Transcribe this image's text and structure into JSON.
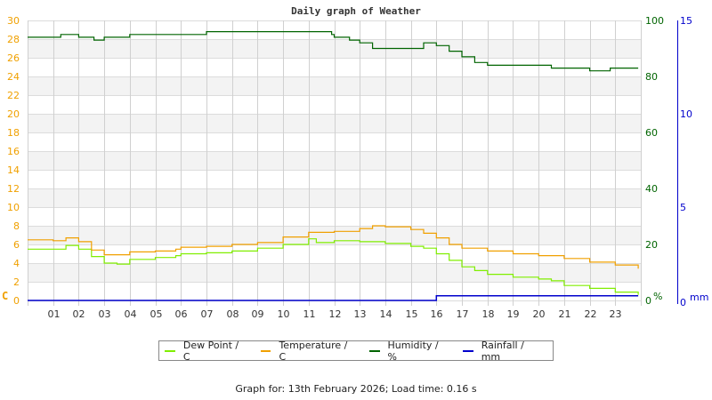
{
  "chart_data": {
    "type": "line",
    "title": "Daily graph of Weather",
    "xlabel": "",
    "x_ticks": [
      "01",
      "02",
      "03",
      "04",
      "05",
      "06",
      "07",
      "08",
      "09",
      "10",
      "11",
      "12",
      "13",
      "14",
      "15",
      "16",
      "17",
      "18",
      "19",
      "20",
      "21",
      "22",
      "23"
    ],
    "xlim": [
      0,
      24
    ],
    "axes": {
      "left": {
        "label": "C",
        "ticks": [
          0,
          2,
          4,
          6,
          8,
          10,
          12,
          14,
          16,
          18,
          20,
          22,
          24,
          26,
          28,
          30
        ],
        "range": [
          0,
          30
        ],
        "color": "#f0a000"
      },
      "right1": {
        "label": "%",
        "ticks": [
          0,
          20,
          40,
          60,
          80,
          100
        ],
        "range": [
          0,
          100
        ],
        "color": "#006400"
      },
      "right2": {
        "label": "mm",
        "ticks": [
          0,
          5,
          10,
          15
        ],
        "range": [
          0,
          15
        ],
        "color": "#0000cc"
      }
    },
    "grid": true,
    "legend_position": "bottom",
    "series": [
      {
        "name": "Dew Point / C",
        "color": "#80ee00",
        "axis": "left",
        "x": [
          0,
          1,
          1.5,
          2,
          2.5,
          3,
          3.5,
          4,
          5,
          5.8,
          6,
          7,
          8,
          9,
          10,
          11,
          11.3,
          12,
          13,
          14,
          15,
          15.5,
          16,
          16.5,
          17,
          17.5,
          18,
          19,
          20,
          20.5,
          21,
          22,
          22.3,
          23,
          23.9
        ],
        "values": [
          5.5,
          5.5,
          5.9,
          5.5,
          4.7,
          4.0,
          3.9,
          4.4,
          4.6,
          4.8,
          5.0,
          5.1,
          5.3,
          5.6,
          6.0,
          6.6,
          6.2,
          6.4,
          6.3,
          6.1,
          5.8,
          5.6,
          5.0,
          4.3,
          3.6,
          3.2,
          2.8,
          2.5,
          2.3,
          2.1,
          1.6,
          1.3,
          1.3,
          0.9,
          0.6
        ]
      },
      {
        "name": "Temperature / C",
        "color": "#f0a000",
        "axis": "left",
        "x": [
          0,
          1,
          1.5,
          2,
          2.5,
          3,
          3.5,
          4,
          5,
          5.8,
          6,
          7,
          8,
          9,
          10,
          11,
          12,
          13,
          13.5,
          14,
          15,
          15.5,
          16,
          16.5,
          17,
          18,
          19,
          20,
          21,
          22,
          23,
          23.9
        ],
        "values": [
          6.5,
          6.4,
          6.7,
          6.3,
          5.4,
          4.9,
          4.9,
          5.2,
          5.3,
          5.5,
          5.7,
          5.8,
          6.0,
          6.2,
          6.8,
          7.3,
          7.4,
          7.7,
          8.0,
          7.9,
          7.6,
          7.2,
          6.7,
          6.0,
          5.6,
          5.3,
          5.0,
          4.8,
          4.5,
          4.1,
          3.8,
          3.4
        ]
      },
      {
        "name": "Humidity / %",
        "color": "#006400",
        "axis": "right1",
        "x": [
          0,
          1.3,
          2,
          2.6,
          3,
          4,
          6.9,
          7,
          11,
          11.9,
          12,
          12.6,
          13,
          13.5,
          15,
          15.5,
          16,
          16.5,
          17,
          17.5,
          18,
          19,
          20,
          20.5,
          21,
          22,
          22.8,
          23.9
        ],
        "values": [
          94,
          95,
          94,
          93,
          94,
          95,
          95,
          96,
          96,
          95,
          94,
          93,
          92,
          90,
          90,
          92,
          91,
          89,
          87,
          85,
          84,
          84,
          84,
          83,
          83,
          82,
          83,
          83
        ]
      },
      {
        "name": "Rainfall / mm",
        "color": "#0000cc",
        "axis": "right2",
        "x": [
          0,
          15.95,
          16,
          23.9
        ],
        "values": [
          0,
          0,
          0.25,
          0.25
        ]
      }
    ]
  },
  "legend": {
    "items": [
      {
        "label": "Dew Point / C",
        "color": "#80ee00"
      },
      {
        "label": "Temperature / C",
        "color": "#f0a000"
      },
      {
        "label": "Humidity / %",
        "color": "#006400"
      },
      {
        "label": "Rainfall / mm",
        "color": "#0000cc"
      }
    ]
  },
  "footer": {
    "text": "Graph for: 13th February 2026; Load time: 0.16 s"
  }
}
